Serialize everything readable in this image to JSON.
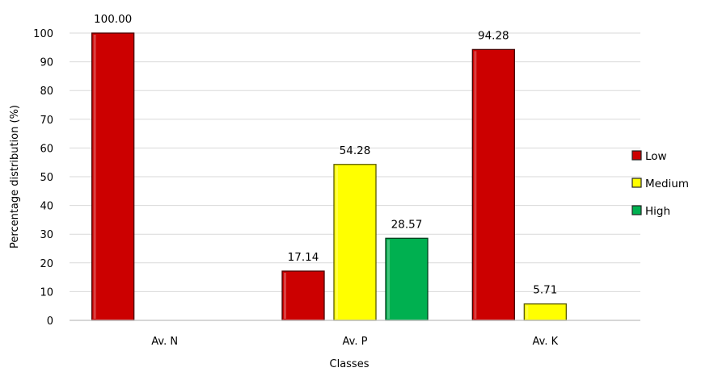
{
  "chart_data": {
    "type": "bar",
    "categories": [
      "Av. N",
      "Av. P",
      "Av. K"
    ],
    "series": [
      {
        "name": "Low",
        "color": "#cc0000",
        "values": [
          100.0,
          17.14,
          94.28
        ]
      },
      {
        "name": "Medium",
        "color": "#ffff00",
        "values": [
          null,
          54.28,
          5.71
        ]
      },
      {
        "name": "High",
        "color": "#00b050",
        "values": [
          null,
          28.57,
          null
        ]
      }
    ],
    "data_labels": [
      [
        "100.00",
        "17.14",
        "94.28"
      ],
      [
        null,
        "54.28",
        "5.71"
      ],
      [
        null,
        "28.57",
        null
      ]
    ],
    "xlabel": "Classes",
    "ylabel": "Percentage distribution (%)",
    "ylim": [
      0,
      100
    ],
    "yticks": [
      0,
      10,
      20,
      30,
      40,
      50,
      60,
      70,
      80,
      90,
      100
    ],
    "grid": true,
    "legend_position": "right"
  }
}
